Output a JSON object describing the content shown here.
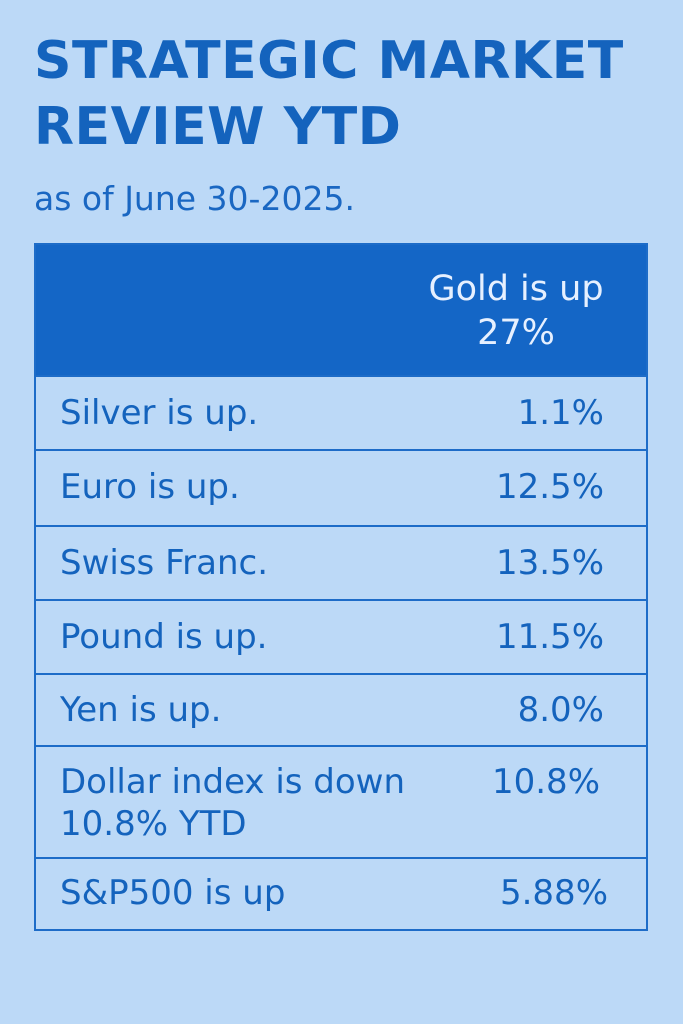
{
  "header": {
    "title": "STRATEGIC MARKET REVIEW YTD",
    "subtitle": "as of June 30-2025."
  },
  "table": {
    "header_value": "Gold is up 27%",
    "rows": [
      {
        "label": "Silver is up.",
        "value": "1.1%"
      },
      {
        "label": "Euro is up.",
        "value": "12.5%"
      },
      {
        "label": "Swiss Franc.",
        "value": "13.5%"
      },
      {
        "label": "Pound is up.",
        "value": "11.5%"
      },
      {
        "label": "Yen is up.",
        "value": "8.0%"
      },
      {
        "label": "Dollar index is down 10.8% YTD",
        "value": "10.8%"
      },
      {
        "label": "S&P500 is up",
        "value": "5.88%"
      }
    ]
  }
}
